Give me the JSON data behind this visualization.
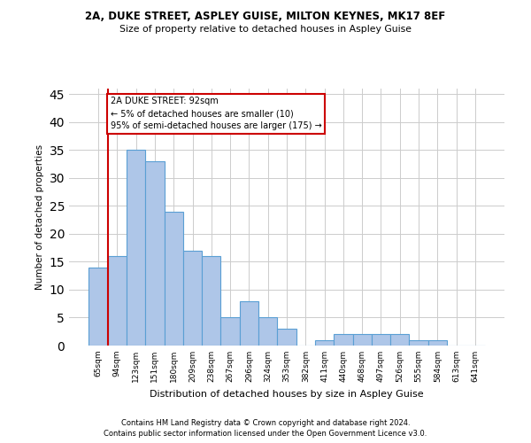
{
  "title1": "2A, DUKE STREET, ASPLEY GUISE, MILTON KEYNES, MK17 8EF",
  "title2": "Size of property relative to detached houses in Aspley Guise",
  "xlabel": "Distribution of detached houses by size in Aspley Guise",
  "ylabel": "Number of detached properties",
  "categories": [
    "65sqm",
    "94sqm",
    "123sqm",
    "151sqm",
    "180sqm",
    "209sqm",
    "238sqm",
    "267sqm",
    "296sqm",
    "324sqm",
    "353sqm",
    "382sqm",
    "411sqm",
    "440sqm",
    "468sqm",
    "497sqm",
    "526sqm",
    "555sqm",
    "584sqm",
    "613sqm",
    "641sqm"
  ],
  "values": [
    14,
    16,
    35,
    33,
    24,
    17,
    16,
    5,
    8,
    5,
    3,
    0,
    1,
    2,
    2,
    2,
    2,
    1,
    1,
    0,
    0
  ],
  "bar_color": "#aec6e8",
  "bar_edge_color": "#5a9fd4",
  "highlight_color": "#cc0000",
  "highlight_index": 1,
  "annotation_text": "2A DUKE STREET: 92sqm\n← 5% of detached houses are smaller (10)\n95% of semi-detached houses are larger (175) →",
  "annotation_box_color": "#ffffff",
  "annotation_box_edge": "#cc0000",
  "ylim": [
    0,
    46
  ],
  "yticks": [
    0,
    5,
    10,
    15,
    20,
    25,
    30,
    35,
    40,
    45
  ],
  "footnote1": "Contains HM Land Registry data © Crown copyright and database right 2024.",
  "footnote2": "Contains public sector information licensed under the Open Government Licence v3.0.",
  "background_color": "#ffffff",
  "grid_color": "#cccccc"
}
